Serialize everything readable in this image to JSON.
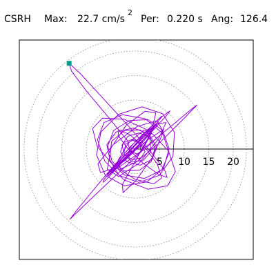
{
  "header": {
    "station": "CSRH",
    "max_label": "Max:",
    "max_value": "22.7 cm/s",
    "max_exponent": "2",
    "per_label": "Per:",
    "per_value": "0.220 s",
    "ang_label": "Ang:",
    "ang_value": "126.4"
  },
  "chart_data": {
    "type": "polar-orbit",
    "title": "",
    "radial_ticks": [
      "5",
      "10",
      "15",
      "20"
    ],
    "radial_tick_values": [
      5,
      10,
      15,
      20
    ],
    "rmax": 22.7,
    "grid": "dotted circles",
    "colors": {
      "trace": "#9400d3",
      "marker": "#00a08a",
      "grid": "#888888",
      "axis": "#000000",
      "frame": "#000000"
    },
    "max_point": {
      "x": -13.5,
      "y": 17.5
    },
    "trace": [
      [
        0,
        0
      ],
      [
        1.3,
        0.6
      ],
      [
        2.0,
        -0.5
      ],
      [
        1.2,
        -1.8
      ],
      [
        -0.6,
        -2.2
      ],
      [
        -2.2,
        -1.1
      ],
      [
        -2.7,
        0.8
      ],
      [
        -1.5,
        2.6
      ],
      [
        0.8,
        3.3
      ],
      [
        3.0,
        2.4
      ],
      [
        4.0,
        0.2
      ],
      [
        3.3,
        -2.5
      ],
      [
        0.9,
        -4.3
      ],
      [
        -2.2,
        -4.5
      ],
      [
        -4.7,
        -2.6
      ],
      [
        -5.6,
        0.6
      ],
      [
        -4.4,
        3.8
      ],
      [
        -1.2,
        5.8
      ],
      [
        2.6,
        6.0
      ],
      [
        5.6,
        3.8
      ],
      [
        6.9,
        0.1
      ],
      [
        5.8,
        -3.9
      ],
      [
        2.4,
        -6.7
      ],
      [
        -2.2,
        -7.5
      ],
      [
        -6.1,
        -5.4
      ],
      [
        -7.9,
        -1.2
      ],
      [
        -7.0,
        3.5
      ],
      [
        -3.4,
        7.1
      ],
      [
        1.4,
        8.6
      ],
      [
        5.6,
        7.2
      ],
      [
        8.0,
        3.4
      ],
      [
        7.7,
        -1.5
      ],
      [
        4.9,
        -5.4
      ],
      [
        0.7,
        -6.8
      ],
      [
        -3.3,
        -5.4
      ],
      [
        -5.3,
        -2.0
      ],
      [
        -4.8,
        1.6
      ],
      [
        -2.1,
        3.8
      ],
      [
        1.0,
        3.9
      ],
      [
        3.0,
        2.1
      ],
      [
        3.2,
        -0.6
      ],
      [
        1.5,
        -2.4
      ],
      [
        -0.8,
        -2.5
      ],
      [
        -2.3,
        -0.9
      ],
      [
        -2.0,
        1.0
      ],
      [
        -0.5,
        1.8
      ],
      [
        1.0,
        1.0
      ],
      [
        1.1,
        -0.3
      ],
      [
        3.6,
        1.6
      ],
      [
        8.2,
        5.4
      ],
      [
        11.8,
        8.4
      ],
      [
        12.6,
        9.0
      ],
      [
        10.1,
        6.4
      ],
      [
        5.2,
        1.5
      ],
      [
        0.3,
        -2.6
      ],
      [
        -3.0,
        -4.1
      ],
      [
        -3.5,
        -2.3
      ],
      [
        -1.4,
        1.2
      ],
      [
        1.8,
        3.9
      ],
      [
        3.3,
        3.2
      ],
      [
        1.2,
        -0.6
      ],
      [
        -4.2,
        -5.6
      ],
      [
        -10.1,
        -11.2
      ],
      [
        -13.3,
        -14.3
      ],
      [
        -12.1,
        -12.7
      ],
      [
        -7.0,
        -6.5
      ],
      [
        -0.8,
        0.7
      ],
      [
        4.3,
        5.2
      ],
      [
        6.3,
        5.4
      ],
      [
        4.7,
        2.0
      ],
      [
        0.8,
        -2.9
      ],
      [
        -3.4,
        -5.6
      ],
      [
        -5.7,
        -4.1
      ],
      [
        -4.9,
        0.3
      ],
      [
        -1.8,
        4.9
      ],
      [
        2.0,
        7.7
      ],
      [
        4.2,
        7.4
      ],
      [
        3.3,
        3.5
      ],
      [
        0.1,
        -2.3
      ],
      [
        -2.6,
        -7.2
      ],
      [
        -2.5,
        -8.9
      ],
      [
        0.1,
        -6.5
      ],
      [
        3.7,
        -1.4
      ],
      [
        5.7,
        3.5
      ],
      [
        4.5,
        5.8
      ],
      [
        0.4,
        4.6
      ],
      [
        -4.5,
        0.9
      ],
      [
        -7.6,
        -3.0
      ],
      [
        -7.1,
        -4.8
      ],
      [
        -3.2,
        -3.6
      ],
      [
        1.8,
        -0.1
      ],
      [
        5.4,
        3.1
      ],
      [
        5.8,
        4.0
      ],
      [
        2.7,
        2.0
      ],
      [
        -1.8,
        -1.8
      ],
      [
        -5.1,
        -5.0
      ],
      [
        -5.5,
        -5.5
      ],
      [
        -2.7,
        -2.8
      ],
      [
        1.6,
        1.5
      ],
      [
        4.6,
        4.9
      ],
      [
        4.3,
        4.9
      ],
      [
        0.7,
        1.6
      ],
      [
        -3.6,
        -2.8
      ],
      [
        -5.7,
        -5.2
      ],
      [
        -4.2,
        -4.0
      ],
      [
        -0.1,
        0.0
      ],
      [
        3.6,
        3.9
      ],
      [
        6.2,
        6.6
      ],
      [
        7.1,
        7.8
      ],
      [
        5.0,
        6.3
      ],
      [
        0.6,
        2.1
      ],
      [
        -3.4,
        -2.2
      ],
      [
        -4.3,
        -3.8
      ],
      [
        -2.6,
        -2.4
      ],
      [
        0.5,
        0.7
      ],
      [
        3.6,
        4.1
      ],
      [
        4.5,
        5.3
      ],
      [
        2.7,
        3.6
      ],
      [
        -0.4,
        0.3
      ],
      [
        -2.6,
        -2.4
      ],
      [
        -2.4,
        -2.6
      ],
      [
        -0.3,
        -0.6
      ],
      [
        1.3,
        1.3
      ],
      [
        1.2,
        1.2
      ],
      [
        -0.4,
        -0.3
      ],
      [
        -2.6,
        -2.2
      ],
      [
        -4.2,
        -3.6
      ],
      [
        -4.8,
        -4.0
      ],
      [
        -4.0,
        -3.2
      ],
      [
        -2.1,
        -1.4
      ],
      [
        0.2,
        0.9
      ],
      [
        2.4,
        3.1
      ],
      [
        4.2,
        5.1
      ],
      [
        5.3,
        6.4
      ],
      [
        5.4,
        6.7
      ],
      [
        4.0,
        5.4
      ],
      [
        1.4,
        2.5
      ],
      [
        -1.9,
        -1.1
      ],
      [
        -4.8,
        -4.3
      ],
      [
        -6.5,
        -6.4
      ],
      [
        -6.5,
        -6.8
      ],
      [
        -5.3,
        -5.6
      ],
      [
        -3.3,
        -3.4
      ],
      [
        -1.0,
        -1.0
      ],
      [
        -1.5,
        1.6
      ],
      [
        -5.4,
        6.4
      ],
      [
        -10.1,
        12.0
      ],
      [
        -13.0,
        15.9
      ],
      [
        -13.5,
        17.5
      ],
      [
        -11.3,
        15.5
      ],
      [
        -6.8,
        10.6
      ],
      [
        -1.4,
        4.7
      ],
      [
        3.2,
        -0.6
      ],
      [
        6.0,
        -4.3
      ],
      [
        6.5,
        -5.8
      ],
      [
        4.8,
        -5.2
      ],
      [
        1.6,
        -2.9
      ],
      [
        -1.6,
        0.2
      ],
      [
        -3.5,
        2.8
      ],
      [
        -3.4,
        3.9
      ],
      [
        -1.2,
        3.0
      ],
      [
        1.9,
        0.4
      ],
      [
        4.5,
        -3.0
      ],
      [
        5.4,
        -5.9
      ],
      [
        3.8,
        -7.1
      ],
      [
        0.0,
        -6.2
      ],
      [
        -4.5,
        -3.3
      ],
      [
        -7.8,
        0.6
      ],
      [
        -8.7,
        4.2
      ],
      [
        -6.7,
        6.3
      ],
      [
        -2.3,
        6.1
      ],
      [
        2.9,
        3.7
      ],
      [
        6.8,
        -0.4
      ],
      [
        8.2,
        -4.6
      ],
      [
        6.6,
        -7.5
      ],
      [
        2.6,
        -8.2
      ],
      [
        -2.3,
        -6.3
      ],
      [
        -6.2,
        -2.5
      ],
      [
        -7.7,
        1.9
      ],
      [
        -6.4,
        5.4
      ],
      [
        -2.6,
        7.0
      ],
      [
        2.0,
        6.2
      ],
      [
        5.6,
        3.2
      ],
      [
        6.9,
        -0.8
      ],
      [
        5.4,
        -4.3
      ],
      [
        1.9,
        -6.0
      ],
      [
        -2.2,
        -5.3
      ],
      [
        -5.1,
        -2.6
      ],
      [
        -5.8,
        0.9
      ],
      [
        -3.9,
        3.5
      ],
      [
        -0.4,
        4.3
      ],
      [
        2.8,
        3.1
      ],
      [
        4.3,
        0.5
      ],
      [
        3.5,
        -2.1
      ],
      [
        1.0,
        -3.3
      ],
      [
        -1.7,
        -2.6
      ],
      [
        -3.0,
        -0.6
      ],
      [
        -2.4,
        1.3
      ],
      [
        -0.5,
        2.0
      ],
      [
        1.2,
        1.2
      ],
      [
        1.5,
        -0.2
      ],
      [
        0.4,
        -1.0
      ],
      [
        -0.8,
        -0.6
      ],
      [
        -0.9,
        0.3
      ],
      [
        0,
        0
      ]
    ]
  }
}
